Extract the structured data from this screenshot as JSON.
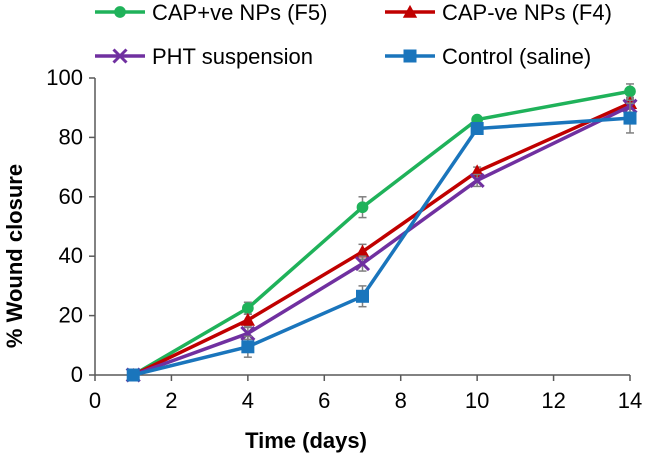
{
  "chart_data": {
    "type": "line",
    "title": "",
    "xlabel": "Time (days)",
    "ylabel": "% Wound closure",
    "xlim": [
      0,
      14
    ],
    "ylim": [
      0,
      100
    ],
    "xticks": [
      0,
      2,
      4,
      6,
      8,
      10,
      12,
      14
    ],
    "yticks": [
      0,
      20,
      40,
      60,
      80,
      100
    ],
    "grid": false,
    "legend_position": "top",
    "series": [
      {
        "name": "CAP+ve NPs (F5)",
        "color": "#1fb25a",
        "marker": "circle",
        "x": [
          1,
          4,
          7,
          10,
          14
        ],
        "y": [
          0,
          22.5,
          56.5,
          86,
          95.5
        ],
        "err": [
          0.5,
          2,
          3.5,
          1,
          2.5
        ]
      },
      {
        "name": "CAP-ve NPs (F4)",
        "color": "#c00000",
        "marker": "triangle",
        "x": [
          1,
          4,
          7,
          10,
          14
        ],
        "y": [
          0,
          18.5,
          41.5,
          68.5,
          91.5
        ],
        "err": [
          0.5,
          2,
          2.5,
          1.5,
          2
        ]
      },
      {
        "name": "PHT suspension",
        "color": "#7030a0",
        "marker": "x",
        "x": [
          1,
          4,
          7,
          10,
          14
        ],
        "y": [
          0,
          14,
          37.5,
          65.5,
          90.5
        ],
        "err": [
          0.5,
          2,
          2.5,
          2,
          2
        ]
      },
      {
        "name": "Control (saline)",
        "color": "#1a75bc",
        "marker": "square",
        "x": [
          1,
          4,
          7,
          10,
          14
        ],
        "y": [
          0,
          9.5,
          26.5,
          83,
          86.5
        ],
        "err": [
          1,
          3.5,
          3.5,
          1.5,
          5
        ]
      }
    ]
  }
}
